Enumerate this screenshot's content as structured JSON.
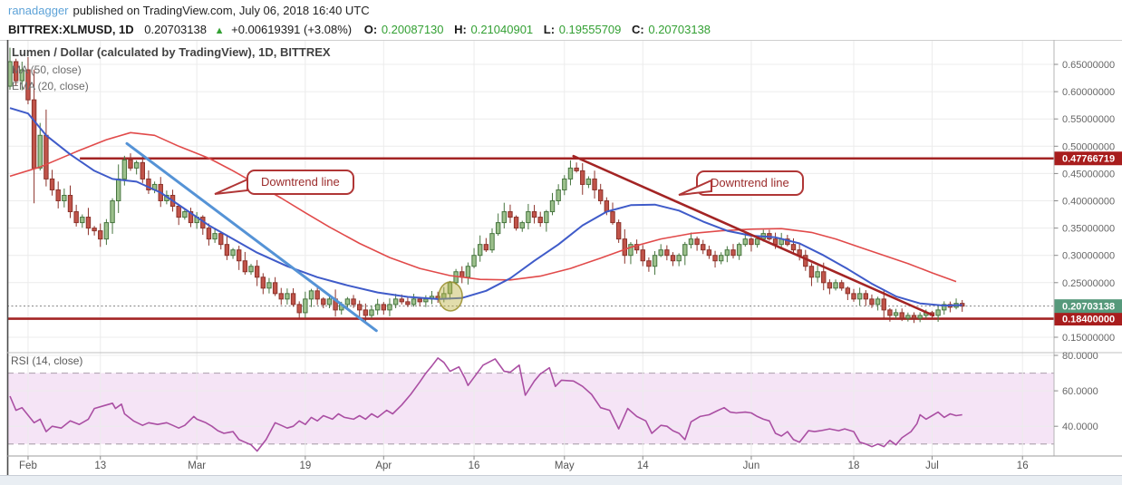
{
  "header": {
    "author": "ranadagger",
    "published_text": "published on TradingView.com, July 06, 2018 16:40 UTC"
  },
  "symbol_bar": {
    "symbol": "BITTREX:XLMUSD, 1D",
    "last": "0.20703138",
    "up_icon": "▲",
    "change": "+0.00619391 (+3.08%)",
    "o_label": "O:",
    "o": "0.20087130",
    "h_label": "H:",
    "h": "0.21040901",
    "l_label": "L:",
    "l": "0.19555709",
    "c_label": "C:",
    "c": "0.20703138"
  },
  "legend": {
    "title": "Lumen / Dollar (calculated by TradingView), 1D, BITTREX",
    "ma": "MA (50, close)",
    "ema": "EMA (20, close)",
    "rsi": "RSI (14, close)"
  },
  "annotations": {
    "downtrend1": "Downtrend line",
    "downtrend2": "Downtrend line"
  },
  "colors": {
    "grid": "#ECECEC",
    "candle_up_fill": "#9CC08C",
    "candle_up_stroke": "#47753F",
    "candle_down_fill": "#C1544A",
    "candle_down_stroke": "#8C332B",
    "ma": "#E14A4A",
    "ema": "#3F5BC9",
    "trend_blue": "#5593D6",
    "level_red": "#A32424",
    "badge_level_bg": "#A81D1D",
    "badge_last_bg": "#56997B",
    "dotted_price": "#808080",
    "rsi_line": "#AA4FA3",
    "rsi_band": "#F5E4F6",
    "rsi_dash": "#B4A8B4",
    "axis_text": "#666666",
    "time_text": "#555555",
    "value_green": "#33A033",
    "author_blue": "#5EA3D8",
    "ellipse_fill": "rgba(190,180,70,0.45)",
    "ellipse_stroke": "rgba(150,140,40,0.85)"
  },
  "chart_data": {
    "type": "candlestick",
    "title": "Lumen / Dollar (calculated by TradingView), 1D, BITTREX",
    "symbol": "BITTREX:XLMUSD",
    "interval": "1D",
    "price_axis": {
      "range": [
        0.14,
        0.7
      ],
      "ticks": [
        {
          "price": 0.65,
          "label": "0.65000000"
        },
        {
          "price": 0.6,
          "label": "0.60000000"
        },
        {
          "price": 0.55,
          "label": "0.55000000"
        },
        {
          "price": 0.5,
          "label": "0.50000000"
        },
        {
          "price": 0.45,
          "label": "0.45000000"
        },
        {
          "price": 0.4,
          "label": "0.40000000"
        },
        {
          "price": 0.35,
          "label": "0.35000000"
        },
        {
          "price": 0.3,
          "label": "0.30000000"
        },
        {
          "price": 0.25,
          "label": "0.25000000"
        },
        {
          "price": 0.15,
          "label": "0.15000000"
        }
      ]
    },
    "time_axis": {
      "ticks": [
        {
          "index": 3,
          "label": "Feb"
        },
        {
          "index": 15,
          "label": "13"
        },
        {
          "index": 31,
          "label": "Mar"
        },
        {
          "index": 49,
          "label": "19"
        },
        {
          "index": 62,
          "label": "Apr"
        },
        {
          "index": 77,
          "label": "16"
        },
        {
          "index": 92,
          "label": "May"
        },
        {
          "index": 105,
          "label": "14"
        },
        {
          "index": 123,
          "label": "Jun"
        },
        {
          "index": 140,
          "label": "18"
        },
        {
          "index": 153,
          "label": "Jul"
        },
        {
          "index": 168,
          "label": "16"
        }
      ]
    },
    "candles": {
      "first_open": 0.61,
      "closes": [
        0.655,
        0.62,
        0.64,
        0.585,
        0.46,
        0.52,
        0.44,
        0.42,
        0.4,
        0.41,
        0.38,
        0.36,
        0.37,
        0.35,
        0.345,
        0.33,
        0.36,
        0.4,
        0.44,
        0.475,
        0.46,
        0.47,
        0.44,
        0.42,
        0.43,
        0.4,
        0.41,
        0.39,
        0.37,
        0.38,
        0.36,
        0.37,
        0.35,
        0.33,
        0.34,
        0.32,
        0.3,
        0.31,
        0.29,
        0.27,
        0.28,
        0.26,
        0.24,
        0.25,
        0.23,
        0.22,
        0.23,
        0.21,
        0.195,
        0.22,
        0.235,
        0.22,
        0.21,
        0.22,
        0.2,
        0.21,
        0.22,
        0.21,
        0.2,
        0.19,
        0.2,
        0.21,
        0.2,
        0.21,
        0.22,
        0.215,
        0.21,
        0.22,
        0.215,
        0.22,
        0.225,
        0.22,
        0.23,
        0.25,
        0.27,
        0.26,
        0.28,
        0.3,
        0.32,
        0.31,
        0.34,
        0.36,
        0.38,
        0.37,
        0.35,
        0.36,
        0.38,
        0.37,
        0.36,
        0.38,
        0.4,
        0.42,
        0.44,
        0.46,
        0.455,
        0.43,
        0.44,
        0.42,
        0.4,
        0.38,
        0.36,
        0.33,
        0.3,
        0.32,
        0.31,
        0.29,
        0.28,
        0.3,
        0.31,
        0.3,
        0.29,
        0.3,
        0.32,
        0.33,
        0.32,
        0.31,
        0.3,
        0.29,
        0.3,
        0.31,
        0.3,
        0.32,
        0.33,
        0.32,
        0.33,
        0.34,
        0.33,
        0.32,
        0.33,
        0.32,
        0.31,
        0.3,
        0.28,
        0.26,
        0.27,
        0.25,
        0.24,
        0.25,
        0.24,
        0.23,
        0.22,
        0.23,
        0.22,
        0.21,
        0.22,
        0.2,
        0.19,
        0.195,
        0.185,
        0.19,
        0.185,
        0.19,
        0.195,
        0.19,
        0.2,
        0.21,
        0.205,
        0.212,
        0.207
      ]
    },
    "overlays": {
      "ma50": {
        "label": "MA (50, close)",
        "points": [
          [
            0,
            0.445
          ],
          [
            5,
            0.462
          ],
          [
            11,
            0.49
          ],
          [
            16,
            0.512
          ],
          [
            20,
            0.525
          ],
          [
            24,
            0.52
          ],
          [
            28,
            0.5
          ],
          [
            33,
            0.478
          ],
          [
            37,
            0.455
          ],
          [
            41,
            0.43
          ],
          [
            45,
            0.405
          ],
          [
            49,
            0.378
          ],
          [
            53,
            0.352
          ],
          [
            58,
            0.322
          ],
          [
            63,
            0.296
          ],
          [
            68,
            0.276
          ],
          [
            73,
            0.263
          ],
          [
            78,
            0.256
          ],
          [
            83,
            0.255
          ],
          [
            88,
            0.262
          ],
          [
            93,
            0.276
          ],
          [
            98,
            0.295
          ],
          [
            103,
            0.315
          ],
          [
            108,
            0.33
          ],
          [
            113,
            0.34
          ],
          [
            118,
            0.345
          ],
          [
            123,
            0.348
          ],
          [
            128,
            0.349
          ],
          [
            133,
            0.342
          ],
          [
            137,
            0.33
          ],
          [
            141,
            0.315
          ],
          [
            145,
            0.3
          ],
          [
            149,
            0.285
          ],
          [
            153,
            0.268
          ],
          [
            157,
            0.252
          ]
        ]
      },
      "ema20": {
        "label": "EMA (20, close)",
        "points": [
          [
            0,
            0.57
          ],
          [
            3,
            0.56
          ],
          [
            6,
            0.52
          ],
          [
            10,
            0.485
          ],
          [
            14,
            0.455
          ],
          [
            17,
            0.44
          ],
          [
            21,
            0.435
          ],
          [
            25,
            0.415
          ],
          [
            29,
            0.385
          ],
          [
            33,
            0.355
          ],
          [
            37,
            0.33
          ],
          [
            41,
            0.305
          ],
          [
            46,
            0.28
          ],
          [
            51,
            0.26
          ],
          [
            56,
            0.245
          ],
          [
            61,
            0.232
          ],
          [
            66,
            0.224
          ],
          [
            71,
            0.22
          ],
          [
            75,
            0.222
          ],
          [
            79,
            0.235
          ],
          [
            83,
            0.258
          ],
          [
            87,
            0.29
          ],
          [
            91,
            0.32
          ],
          [
            95,
            0.355
          ],
          [
            99,
            0.38
          ],
          [
            103,
            0.392
          ],
          [
            107,
            0.393
          ],
          [
            111,
            0.382
          ],
          [
            115,
            0.362
          ],
          [
            119,
            0.345
          ],
          [
            123,
            0.336
          ],
          [
            127,
            0.333
          ],
          [
            131,
            0.322
          ],
          [
            135,
            0.3
          ],
          [
            139,
            0.275
          ],
          [
            143,
            0.248
          ],
          [
            147,
            0.225
          ],
          [
            151,
            0.212
          ],
          [
            155,
            0.208
          ],
          [
            158,
            0.209
          ]
        ]
      }
    },
    "drawings": {
      "trendline_blue": {
        "type": "trendline",
        "points": [
          [
            19.4,
            0.505
          ],
          [
            60.8,
            0.162
          ]
        ]
      },
      "trendline_red": {
        "type": "trendline",
        "points": [
          [
            93.5,
            0.482
          ],
          [
            153.2,
            0.19
          ]
        ]
      },
      "resistance": {
        "type": "hline",
        "price": 0.47766719,
        "from_index": 11.6,
        "label": "0.47766719"
      },
      "support": {
        "type": "hline",
        "price": 0.184,
        "label": "0.18400000"
      },
      "highlight_ellipse": {
        "center": [
          73.1,
          0.2248
        ]
      }
    },
    "last_price": {
      "value": 0.20703138,
      "label": "0.20703138"
    },
    "rsi": {
      "label": "RSI (14, close)",
      "upper": 70,
      "lower": 30,
      "ticks": [
        {
          "value": 80,
          "label": "80.0000"
        },
        {
          "value": 60,
          "label": "60.0000"
        },
        {
          "value": 40,
          "label": "40.0000"
        }
      ],
      "points": [
        [
          0,
          57
        ],
        [
          1,
          49
        ],
        [
          2,
          50.5
        ],
        [
          4,
          42
        ],
        [
          5,
          44
        ],
        [
          6,
          37
        ],
        [
          7,
          40
        ],
        [
          8.5,
          39
        ],
        [
          10,
          43
        ],
        [
          11.5,
          41
        ],
        [
          13,
          44
        ],
        [
          14,
          50
        ],
        [
          15.5,
          51.5
        ],
        [
          17,
          53
        ],
        [
          17.5,
          50
        ],
        [
          18.5,
          52.5
        ],
        [
          19,
          47
        ],
        [
          20.5,
          43
        ],
        [
          22,
          40.5
        ],
        [
          23,
          42
        ],
        [
          24.5,
          41
        ],
        [
          26,
          42
        ],
        [
          27,
          40.5
        ],
        [
          28,
          39
        ],
        [
          29,
          40.5
        ],
        [
          30.5,
          45.5
        ],
        [
          31,
          44
        ],
        [
          32.5,
          42
        ],
        [
          33.5,
          40
        ],
        [
          34.5,
          37.5
        ],
        [
          35.5,
          36
        ],
        [
          37,
          37
        ],
        [
          38,
          32.5
        ],
        [
          39,
          31
        ],
        [
          40,
          29.5
        ],
        [
          41,
          26
        ],
        [
          42.5,
          32.5
        ],
        [
          44,
          42
        ],
        [
          45,
          40.5
        ],
        [
          46,
          39
        ],
        [
          47,
          40
        ],
        [
          48,
          43
        ],
        [
          49,
          41
        ],
        [
          50,
          45
        ],
        [
          51,
          43
        ],
        [
          52,
          46
        ],
        [
          53.5,
          44
        ],
        [
          54.5,
          47
        ],
        [
          55.5,
          45
        ],
        [
          57,
          44
        ],
        [
          58,
          46
        ],
        [
          59,
          44
        ],
        [
          60,
          47
        ],
        [
          61,
          45
        ],
        [
          62.5,
          49
        ],
        [
          63.5,
          47
        ],
        [
          65,
          52
        ],
        [
          66.5,
          58
        ],
        [
          68,
          65
        ],
        [
          69,
          70
        ],
        [
          70,
          74
        ],
        [
          71,
          78.5
        ],
        [
          72,
          76
        ],
        [
          73,
          71
        ],
        [
          74.5,
          73.5
        ],
        [
          75.5,
          67
        ],
        [
          76,
          63
        ],
        [
          78.5,
          74.5
        ],
        [
          80.5,
          78
        ],
        [
          82,
          71
        ],
        [
          83,
          70.5
        ],
        [
          84.5,
          74.5
        ],
        [
          85.5,
          57.5
        ],
        [
          87,
          65.5
        ],
        [
          88,
          69.5
        ],
        [
          89.5,
          73
        ],
        [
          90.5,
          62.5
        ],
        [
          91.5,
          66
        ],
        [
          93.5,
          65.5
        ],
        [
          95,
          62.5
        ],
        [
          96.5,
          58
        ],
        [
          98,
          50.5
        ],
        [
          99.5,
          49
        ],
        [
          100,
          45.5
        ],
        [
          101,
          38.5
        ],
        [
          102.5,
          50
        ],
        [
          104,
          45.5
        ],
        [
          105.5,
          43
        ],
        [
          106.5,
          36
        ],
        [
          108,
          40.5
        ],
        [
          109,
          40
        ],
        [
          110,
          37.5
        ],
        [
          111,
          36
        ],
        [
          112,
          32.5
        ],
        [
          113,
          42.5
        ],
        [
          114.5,
          45.5
        ],
        [
          116,
          46.5
        ],
        [
          117.5,
          49
        ],
        [
          118.5,
          50.5
        ],
        [
          119.5,
          48
        ],
        [
          120.5,
          47.5
        ],
        [
          122,
          48
        ],
        [
          123,
          47.5
        ],
        [
          124,
          45.5
        ],
        [
          125,
          44
        ],
        [
          126,
          43
        ],
        [
          127,
          36
        ],
        [
          128,
          34.5
        ],
        [
          129,
          37
        ],
        [
          130,
          32.5
        ],
        [
          131,
          31
        ],
        [
          132.5,
          37.5
        ],
        [
          133.5,
          37
        ],
        [
          134.5,
          37.5
        ],
        [
          136,
          38.5
        ],
        [
          137.5,
          37.5
        ],
        [
          138.5,
          38.5
        ],
        [
          140,
          37
        ],
        [
          141,
          31
        ],
        [
          142,
          30
        ],
        [
          143,
          28.5
        ],
        [
          144,
          30
        ],
        [
          145,
          28.5
        ],
        [
          146,
          32
        ],
        [
          147,
          29.5
        ],
        [
          148,
          33.5
        ],
        [
          149.5,
          37
        ],
        [
          150.5,
          41.5
        ],
        [
          151,
          46.5
        ],
        [
          152,
          44
        ],
        [
          153,
          46
        ],
        [
          154,
          48
        ],
        [
          155,
          45
        ],
        [
          156,
          47
        ],
        [
          157,
          46
        ],
        [
          158,
          46.5
        ]
      ]
    }
  }
}
